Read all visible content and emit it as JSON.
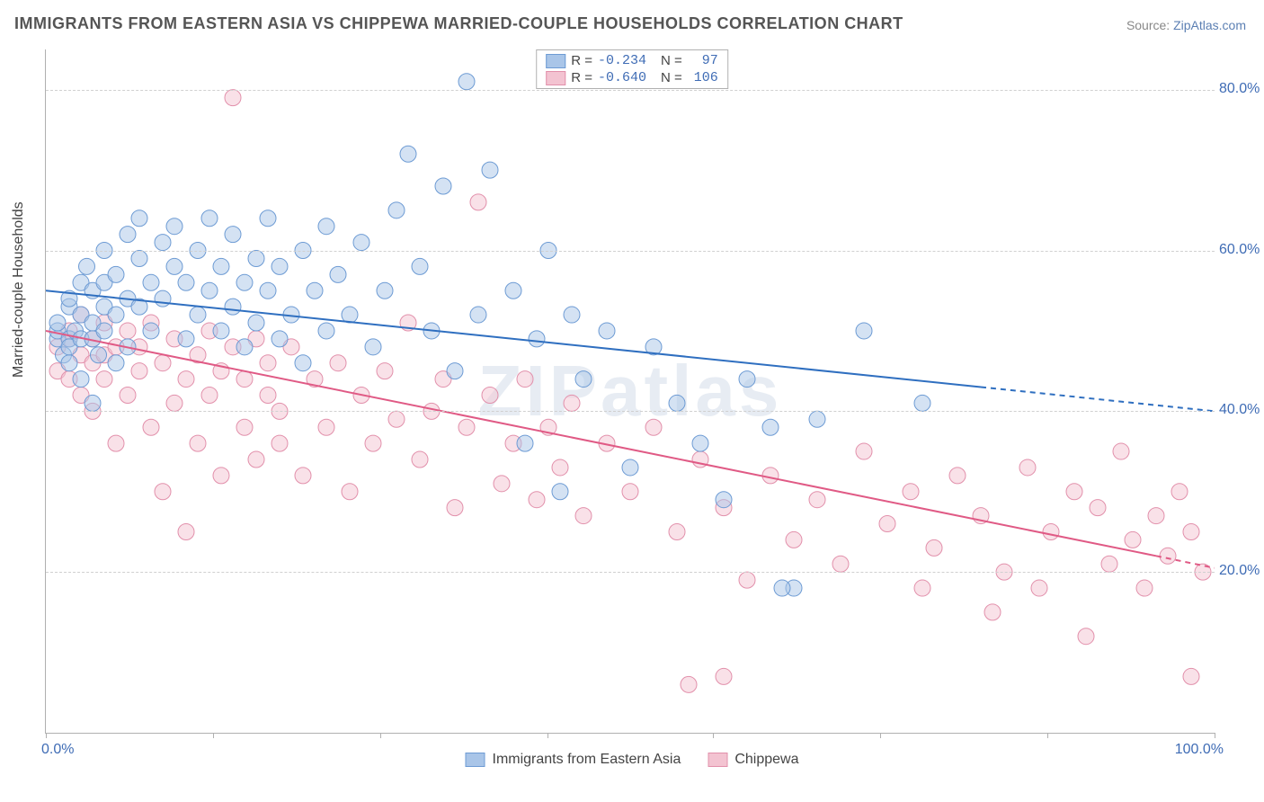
{
  "title": "IMMIGRANTS FROM EASTERN ASIA VS CHIPPEWA MARRIED-COUPLE HOUSEHOLDS CORRELATION CHART",
  "source_label": "Source: ",
  "source_value": "ZipAtlas.com",
  "watermark": "ZIPatlas",
  "ylabel": "Married-couple Households",
  "chart": {
    "type": "scatter",
    "xlim": [
      0,
      100
    ],
    "ylim": [
      0,
      85
    ],
    "x_tick_min_label": "0.0%",
    "x_tick_max_label": "100.0%",
    "x_tick_marks": [
      0,
      14.3,
      28.6,
      42.9,
      57.1,
      71.4,
      85.7,
      100
    ],
    "y_ticks": [
      {
        "v": 20,
        "label": "20.0%"
      },
      {
        "v": 40,
        "label": "40.0%"
      },
      {
        "v": 60,
        "label": "60.0%"
      },
      {
        "v": 80,
        "label": "80.0%"
      }
    ],
    "grid_color": "#d0d0d0",
    "background_color": "#ffffff",
    "marker_radius": 9,
    "marker_opacity": 0.5,
    "line_width": 2,
    "series": [
      {
        "name": "Immigrants from Eastern Asia",
        "color_fill": "#a9c5e8",
        "color_stroke": "#6d9bd4",
        "line_color": "#2f6fc0",
        "R": "-0.234",
        "N": "97",
        "trend": {
          "x1": 0,
          "y1": 55,
          "x2_solid": 80,
          "y2_solid": 43,
          "x2_dash": 100,
          "y2_dash": 40
        },
        "points": [
          [
            1,
            49
          ],
          [
            1,
            50
          ],
          [
            1,
            51
          ],
          [
            1.5,
            47
          ],
          [
            2,
            49
          ],
          [
            2,
            53
          ],
          [
            2,
            54
          ],
          [
            2,
            46
          ],
          [
            2,
            48
          ],
          [
            2.5,
            50
          ],
          [
            3,
            52
          ],
          [
            3,
            56
          ],
          [
            3,
            44
          ],
          [
            3,
            49
          ],
          [
            3.5,
            58
          ],
          [
            4,
            55
          ],
          [
            4,
            51
          ],
          [
            4,
            41
          ],
          [
            4,
            49
          ],
          [
            4.5,
            47
          ],
          [
            5,
            53
          ],
          [
            5,
            60
          ],
          [
            5,
            56
          ],
          [
            5,
            50
          ],
          [
            6,
            57
          ],
          [
            6,
            52
          ],
          [
            6,
            46
          ],
          [
            7,
            62
          ],
          [
            7,
            54
          ],
          [
            7,
            48
          ],
          [
            8,
            59
          ],
          [
            8,
            53
          ],
          [
            8,
            64
          ],
          [
            9,
            56
          ],
          [
            9,
            50
          ],
          [
            10,
            61
          ],
          [
            10,
            54
          ],
          [
            11,
            58
          ],
          [
            11,
            63
          ],
          [
            12,
            56
          ],
          [
            12,
            49
          ],
          [
            13,
            60
          ],
          [
            13,
            52
          ],
          [
            14,
            55
          ],
          [
            14,
            64
          ],
          [
            15,
            58
          ],
          [
            15,
            50
          ],
          [
            16,
            53
          ],
          [
            16,
            62
          ],
          [
            17,
            56
          ],
          [
            17,
            48
          ],
          [
            18,
            59
          ],
          [
            18,
            51
          ],
          [
            19,
            64
          ],
          [
            19,
            55
          ],
          [
            20,
            58
          ],
          [
            20,
            49
          ],
          [
            21,
            52
          ],
          [
            22,
            60
          ],
          [
            22,
            46
          ],
          [
            23,
            55
          ],
          [
            24,
            63
          ],
          [
            24,
            50
          ],
          [
            25,
            57
          ],
          [
            26,
            52
          ],
          [
            27,
            61
          ],
          [
            28,
            48
          ],
          [
            29,
            55
          ],
          [
            30,
            65
          ],
          [
            31,
            72
          ],
          [
            32,
            58
          ],
          [
            33,
            50
          ],
          [
            34,
            68
          ],
          [
            35,
            45
          ],
          [
            36,
            81
          ],
          [
            37,
            52
          ],
          [
            38,
            70
          ],
          [
            40,
            55
          ],
          [
            41,
            36
          ],
          [
            42,
            49
          ],
          [
            43,
            60
          ],
          [
            44,
            30
          ],
          [
            45,
            52
          ],
          [
            46,
            44
          ],
          [
            48,
            50
          ],
          [
            50,
            33
          ],
          [
            52,
            48
          ],
          [
            54,
            41
          ],
          [
            56,
            36
          ],
          [
            58,
            29
          ],
          [
            60,
            44
          ],
          [
            62,
            38
          ],
          [
            64,
            18
          ],
          [
            66,
            39
          ],
          [
            70,
            50
          ],
          [
            75,
            41
          ],
          [
            63,
            18
          ]
        ]
      },
      {
        "name": "Chippewa",
        "color_fill": "#f3c3d1",
        "color_stroke": "#e290ab",
        "line_color": "#e05a85",
        "R": "-0.640",
        "N": "106",
        "trend": {
          "x1": 0,
          "y1": 50,
          "x2_solid": 95,
          "y2_solid": 22,
          "x2_dash": 100,
          "y2_dash": 20.5
        },
        "points": [
          [
            1,
            48
          ],
          [
            1,
            45
          ],
          [
            2,
            49
          ],
          [
            2,
            44
          ],
          [
            2,
            50
          ],
          [
            3,
            47
          ],
          [
            3,
            42
          ],
          [
            3,
            52
          ],
          [
            4,
            46
          ],
          [
            4,
            49
          ],
          [
            4,
            40
          ],
          [
            5,
            51
          ],
          [
            5,
            44
          ],
          [
            5,
            47
          ],
          [
            6,
            48
          ],
          [
            6,
            36
          ],
          [
            7,
            50
          ],
          [
            7,
            42
          ],
          [
            8,
            45
          ],
          [
            8,
            48
          ],
          [
            9,
            38
          ],
          [
            9,
            51
          ],
          [
            10,
            46
          ],
          [
            10,
            30
          ],
          [
            11,
            49
          ],
          [
            11,
            41
          ],
          [
            12,
            44
          ],
          [
            12,
            25
          ],
          [
            13,
            47
          ],
          [
            13,
            36
          ],
          [
            14,
            50
          ],
          [
            14,
            42
          ],
          [
            15,
            45
          ],
          [
            15,
            32
          ],
          [
            16,
            48
          ],
          [
            16,
            79
          ],
          [
            17,
            38
          ],
          [
            17,
            44
          ],
          [
            18,
            49
          ],
          [
            18,
            34
          ],
          [
            19,
            42
          ],
          [
            19,
            46
          ],
          [
            20,
            40
          ],
          [
            20,
            36
          ],
          [
            21,
            48
          ],
          [
            22,
            32
          ],
          [
            23,
            44
          ],
          [
            24,
            38
          ],
          [
            25,
            46
          ],
          [
            26,
            30
          ],
          [
            27,
            42
          ],
          [
            28,
            36
          ],
          [
            29,
            45
          ],
          [
            30,
            39
          ],
          [
            31,
            51
          ],
          [
            32,
            34
          ],
          [
            33,
            40
          ],
          [
            34,
            44
          ],
          [
            35,
            28
          ],
          [
            36,
            38
          ],
          [
            37,
            66
          ],
          [
            38,
            42
          ],
          [
            39,
            31
          ],
          [
            40,
            36
          ],
          [
            41,
            44
          ],
          [
            42,
            29
          ],
          [
            43,
            38
          ],
          [
            44,
            33
          ],
          [
            45,
            41
          ],
          [
            46,
            27
          ],
          [
            48,
            36
          ],
          [
            50,
            30
          ],
          [
            52,
            38
          ],
          [
            54,
            25
          ],
          [
            55,
            6
          ],
          [
            56,
            34
          ],
          [
            58,
            7
          ],
          [
            58,
            28
          ],
          [
            60,
            19
          ],
          [
            62,
            32
          ],
          [
            64,
            24
          ],
          [
            66,
            29
          ],
          [
            68,
            21
          ],
          [
            70,
            35
          ],
          [
            72,
            26
          ],
          [
            74,
            30
          ],
          [
            75,
            18
          ],
          [
            76,
            23
          ],
          [
            78,
            32
          ],
          [
            80,
            27
          ],
          [
            81,
            15
          ],
          [
            82,
            20
          ],
          [
            84,
            33
          ],
          [
            85,
            18
          ],
          [
            86,
            25
          ],
          [
            88,
            30
          ],
          [
            89,
            12
          ],
          [
            90,
            28
          ],
          [
            91,
            21
          ],
          [
            92,
            35
          ],
          [
            93,
            24
          ],
          [
            94,
            18
          ],
          [
            95,
            27
          ],
          [
            96,
            22
          ],
          [
            97,
            30
          ],
          [
            98,
            7
          ],
          [
            98,
            25
          ],
          [
            99,
            20
          ]
        ]
      }
    ]
  },
  "legend_bottom": [
    {
      "label": "Immigrants from Eastern Asia",
      "fill": "#a9c5e8",
      "stroke": "#6d9bd4"
    },
    {
      "label": "Chippewa",
      "fill": "#f3c3d1",
      "stroke": "#e290ab"
    }
  ]
}
